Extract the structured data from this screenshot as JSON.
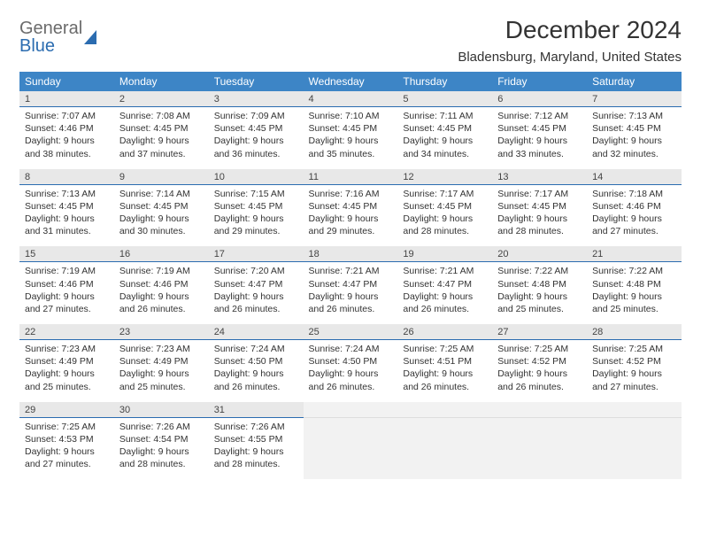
{
  "branding": {
    "logo_word1": "General",
    "logo_word2": "Blue"
  },
  "header": {
    "month_title": "December 2024",
    "location": "Bladensburg, Maryland, United States"
  },
  "styling": {
    "header_bg": "#3d85c6",
    "daynum_bg": "#e8e8e8",
    "empty_bg": "#f2f2f2",
    "divider_color": "#2b6cb0",
    "text_color": "#333333",
    "body_bg": "#ffffff",
    "font_family": "Arial",
    "month_title_fontsize": 28,
    "location_fontsize": 15,
    "dayheader_fontsize": 12,
    "cell_fontsize": 10.5
  },
  "columns": [
    "Sunday",
    "Monday",
    "Tuesday",
    "Wednesday",
    "Thursday",
    "Friday",
    "Saturday"
  ],
  "weeks": [
    [
      {
        "num": "1",
        "sunrise": "Sunrise: 7:07 AM",
        "sunset": "Sunset: 4:46 PM",
        "daylight": "Daylight: 9 hours and 38 minutes."
      },
      {
        "num": "2",
        "sunrise": "Sunrise: 7:08 AM",
        "sunset": "Sunset: 4:45 PM",
        "daylight": "Daylight: 9 hours and 37 minutes."
      },
      {
        "num": "3",
        "sunrise": "Sunrise: 7:09 AM",
        "sunset": "Sunset: 4:45 PM",
        "daylight": "Daylight: 9 hours and 36 minutes."
      },
      {
        "num": "4",
        "sunrise": "Sunrise: 7:10 AM",
        "sunset": "Sunset: 4:45 PM",
        "daylight": "Daylight: 9 hours and 35 minutes."
      },
      {
        "num": "5",
        "sunrise": "Sunrise: 7:11 AM",
        "sunset": "Sunset: 4:45 PM",
        "daylight": "Daylight: 9 hours and 34 minutes."
      },
      {
        "num": "6",
        "sunrise": "Sunrise: 7:12 AM",
        "sunset": "Sunset: 4:45 PM",
        "daylight": "Daylight: 9 hours and 33 minutes."
      },
      {
        "num": "7",
        "sunrise": "Sunrise: 7:13 AM",
        "sunset": "Sunset: 4:45 PM",
        "daylight": "Daylight: 9 hours and 32 minutes."
      }
    ],
    [
      {
        "num": "8",
        "sunrise": "Sunrise: 7:13 AM",
        "sunset": "Sunset: 4:45 PM",
        "daylight": "Daylight: 9 hours and 31 minutes."
      },
      {
        "num": "9",
        "sunrise": "Sunrise: 7:14 AM",
        "sunset": "Sunset: 4:45 PM",
        "daylight": "Daylight: 9 hours and 30 minutes."
      },
      {
        "num": "10",
        "sunrise": "Sunrise: 7:15 AM",
        "sunset": "Sunset: 4:45 PM",
        "daylight": "Daylight: 9 hours and 29 minutes."
      },
      {
        "num": "11",
        "sunrise": "Sunrise: 7:16 AM",
        "sunset": "Sunset: 4:45 PM",
        "daylight": "Daylight: 9 hours and 29 minutes."
      },
      {
        "num": "12",
        "sunrise": "Sunrise: 7:17 AM",
        "sunset": "Sunset: 4:45 PM",
        "daylight": "Daylight: 9 hours and 28 minutes."
      },
      {
        "num": "13",
        "sunrise": "Sunrise: 7:17 AM",
        "sunset": "Sunset: 4:45 PM",
        "daylight": "Daylight: 9 hours and 28 minutes."
      },
      {
        "num": "14",
        "sunrise": "Sunrise: 7:18 AM",
        "sunset": "Sunset: 4:46 PM",
        "daylight": "Daylight: 9 hours and 27 minutes."
      }
    ],
    [
      {
        "num": "15",
        "sunrise": "Sunrise: 7:19 AM",
        "sunset": "Sunset: 4:46 PM",
        "daylight": "Daylight: 9 hours and 27 minutes."
      },
      {
        "num": "16",
        "sunrise": "Sunrise: 7:19 AM",
        "sunset": "Sunset: 4:46 PM",
        "daylight": "Daylight: 9 hours and 26 minutes."
      },
      {
        "num": "17",
        "sunrise": "Sunrise: 7:20 AM",
        "sunset": "Sunset: 4:47 PM",
        "daylight": "Daylight: 9 hours and 26 minutes."
      },
      {
        "num": "18",
        "sunrise": "Sunrise: 7:21 AM",
        "sunset": "Sunset: 4:47 PM",
        "daylight": "Daylight: 9 hours and 26 minutes."
      },
      {
        "num": "19",
        "sunrise": "Sunrise: 7:21 AM",
        "sunset": "Sunset: 4:47 PM",
        "daylight": "Daylight: 9 hours and 26 minutes."
      },
      {
        "num": "20",
        "sunrise": "Sunrise: 7:22 AM",
        "sunset": "Sunset: 4:48 PM",
        "daylight": "Daylight: 9 hours and 25 minutes."
      },
      {
        "num": "21",
        "sunrise": "Sunrise: 7:22 AM",
        "sunset": "Sunset: 4:48 PM",
        "daylight": "Daylight: 9 hours and 25 minutes."
      }
    ],
    [
      {
        "num": "22",
        "sunrise": "Sunrise: 7:23 AM",
        "sunset": "Sunset: 4:49 PM",
        "daylight": "Daylight: 9 hours and 25 minutes."
      },
      {
        "num": "23",
        "sunrise": "Sunrise: 7:23 AM",
        "sunset": "Sunset: 4:49 PM",
        "daylight": "Daylight: 9 hours and 25 minutes."
      },
      {
        "num": "24",
        "sunrise": "Sunrise: 7:24 AM",
        "sunset": "Sunset: 4:50 PM",
        "daylight": "Daylight: 9 hours and 26 minutes."
      },
      {
        "num": "25",
        "sunrise": "Sunrise: 7:24 AM",
        "sunset": "Sunset: 4:50 PM",
        "daylight": "Daylight: 9 hours and 26 minutes."
      },
      {
        "num": "26",
        "sunrise": "Sunrise: 7:25 AM",
        "sunset": "Sunset: 4:51 PM",
        "daylight": "Daylight: 9 hours and 26 minutes."
      },
      {
        "num": "27",
        "sunrise": "Sunrise: 7:25 AM",
        "sunset": "Sunset: 4:52 PM",
        "daylight": "Daylight: 9 hours and 26 minutes."
      },
      {
        "num": "28",
        "sunrise": "Sunrise: 7:25 AM",
        "sunset": "Sunset: 4:52 PM",
        "daylight": "Daylight: 9 hours and 27 minutes."
      }
    ],
    [
      {
        "num": "29",
        "sunrise": "Sunrise: 7:25 AM",
        "sunset": "Sunset: 4:53 PM",
        "daylight": "Daylight: 9 hours and 27 minutes."
      },
      {
        "num": "30",
        "sunrise": "Sunrise: 7:26 AM",
        "sunset": "Sunset: 4:54 PM",
        "daylight": "Daylight: 9 hours and 28 minutes."
      },
      {
        "num": "31",
        "sunrise": "Sunrise: 7:26 AM",
        "sunset": "Sunset: 4:55 PM",
        "daylight": "Daylight: 9 hours and 28 minutes."
      },
      null,
      null,
      null,
      null
    ]
  ]
}
